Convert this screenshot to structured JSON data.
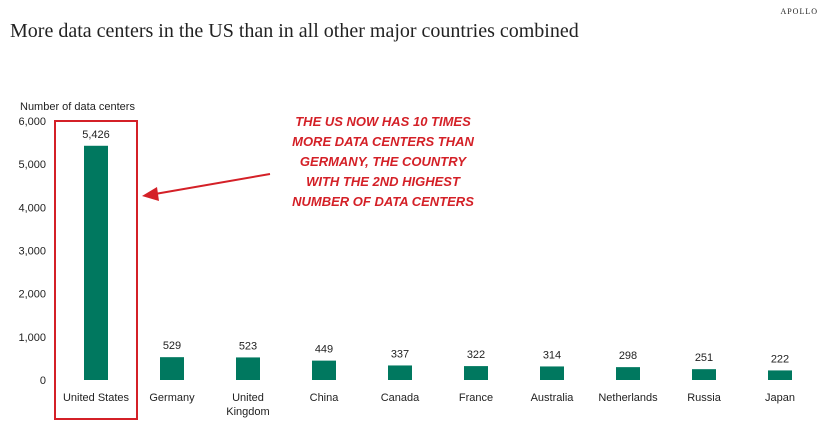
{
  "brand": "APOLLO",
  "title": "More data centers in the US than in all other major countries combined",
  "colors": {
    "bar": "#00785f",
    "highlight": "#d42027",
    "text": "#222222"
  },
  "chart_data": {
    "type": "bar",
    "title": "More data centers in the US than in all other major countries combined",
    "ylabel": "Number of data centers",
    "xlabel": "",
    "ylim": [
      0,
      6000
    ],
    "yticks": [
      0,
      1000,
      2000,
      3000,
      4000,
      5000,
      6000
    ],
    "ytick_labels": [
      "0",
      "1,000",
      "2,000",
      "3,000",
      "4,000",
      "5,000",
      "6,000"
    ],
    "grid": false,
    "categories": [
      [
        "United States"
      ],
      [
        "Germany"
      ],
      [
        "United",
        "Kingdom"
      ],
      [
        "China"
      ],
      [
        "Canada"
      ],
      [
        "France"
      ],
      [
        "Australia"
      ],
      [
        "Netherlands"
      ],
      [
        "Russia"
      ],
      [
        "Japan"
      ]
    ],
    "values": [
      5426,
      529,
      523,
      449,
      337,
      322,
      314,
      298,
      251,
      222
    ],
    "value_labels": [
      "5,426",
      "529",
      "523",
      "449",
      "337",
      "322",
      "314",
      "298",
      "251",
      "222"
    ],
    "highlight_index": 0,
    "annotation": {
      "lines": [
        "THE US NOW HAS 10 TIMES",
        "MORE DATA CENTERS THAN",
        "GERMANY, THE COUNTRY",
        "WITH THE 2ND HIGHEST",
        "NUMBER OF DATA CENTERS"
      ],
      "points_to": "United States"
    }
  }
}
